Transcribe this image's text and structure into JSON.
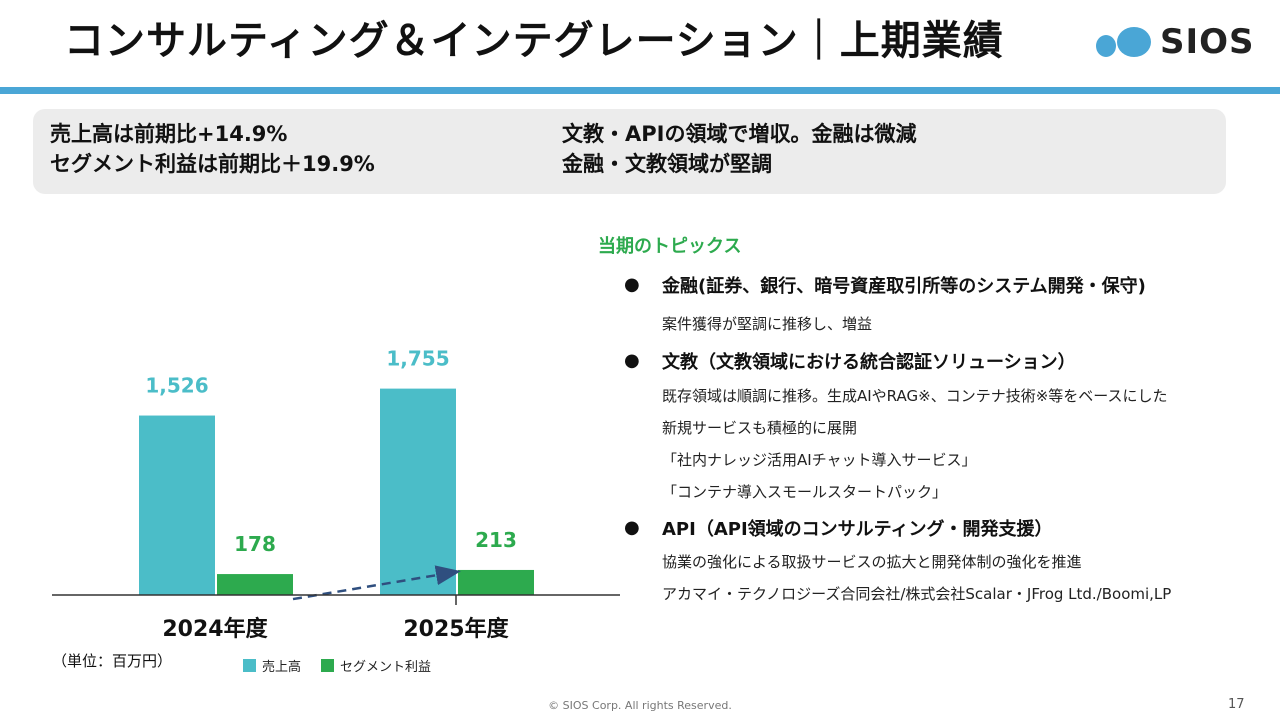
{
  "header": {
    "title": "コンサルティング＆インテグレーション｜上期業績",
    "logo_text": "SIOS",
    "accent_color": "#4aa6d6"
  },
  "summary": {
    "left_line1": "売上高は前期比+14.9%",
    "left_line2": "セグメント利益は前期比＋19.9%",
    "right_line1": "文教・APIの領域で増収。金融は微減",
    "right_line2": "金融・文教領域が堅調"
  },
  "chart_data": {
    "type": "bar",
    "categories": [
      "2024年度",
      "2025年度"
    ],
    "series": [
      {
        "name": "売上高",
        "values": [
          1526,
          1755
        ],
        "labels": [
          "1,526",
          "1,755"
        ],
        "color": "#4bbdc8"
      },
      {
        "name": "セグメント利益",
        "values": [
          178,
          213
        ],
        "labels": [
          "178",
          "213"
        ],
        "color": "#2daa4e"
      }
    ],
    "unit_label": "（単位：百万円）",
    "trend_arrow": "dashed arrow from 2024年度 セグメント利益 to 2025年度 セグメント利益"
  },
  "topics": {
    "title": "当期のトピックス",
    "bullet_symbol": "●",
    "items": [
      {
        "heading": "金融(証券、銀行、暗号資産取引所等のシステム開発・保守)",
        "lines": [
          "案件獲得が堅調に推移し、増益"
        ]
      },
      {
        "heading": "文教（文教領域における統合認証ソリューション）",
        "lines": [
          "既存領域は順調に推移。生成AIやRAG※、コンテナ技術※等をベースにした",
          "新規サービスも積極的に展開",
          "「社内ナレッジ活用AIチャット導入サービス」",
          "「コンテナ導入スモールスタートパック」"
        ]
      },
      {
        "heading": "API（API領域のコンサルティング・開発支援）",
        "lines": [
          "協業の強化による取扱サービスの拡大と開発体制の強化を推進",
          "アカマイ・テクノロジーズ合同会社/株式会社Scalar・JFrog Ltd./Boomi,LP"
        ]
      }
    ]
  },
  "footer": {
    "copyright": "© SIOS Corp. All rights Reserved.",
    "page_number": "17"
  }
}
